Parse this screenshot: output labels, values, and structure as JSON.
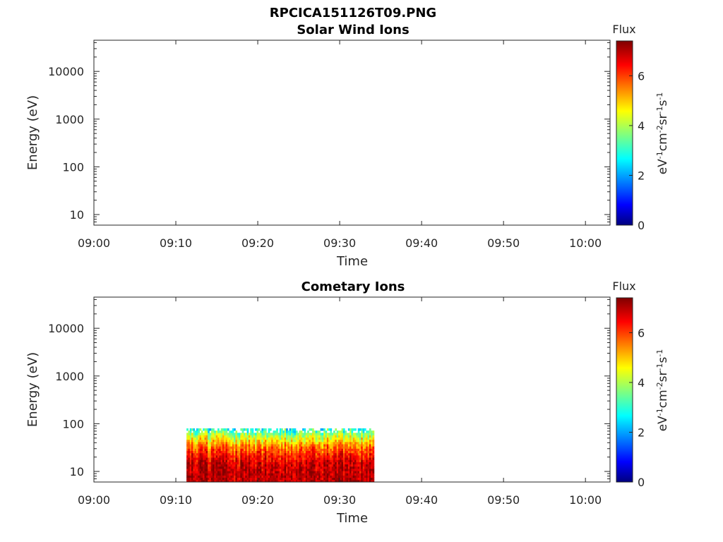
{
  "figure_title": "RPCICA151126T09.PNG",
  "chart_data": [
    {
      "type": "heatmap",
      "title": "Solar Wind Ions",
      "xlabel": "Time",
      "ylabel": "Energy (eV)",
      "x_ticks": [
        "09:00",
        "09:10",
        "09:20",
        "09:30",
        "09:40",
        "09:50",
        "10:00"
      ],
      "x_range_minutes": [
        0,
        63
      ],
      "y_scale": "log",
      "y_ticks": [
        10,
        100,
        1000,
        10000
      ],
      "y_tick_labels": [
        "10",
        "100",
        "1000",
        "10000"
      ],
      "y_range": [
        6,
        45000
      ],
      "data_present": false,
      "colorbar": {
        "title": "Flux",
        "label": "eV-1cm-2sr-1s-1",
        "range": [
          0,
          7.4
        ],
        "ticks": [
          0,
          2,
          4,
          6
        ],
        "colormap": "jet"
      }
    },
    {
      "type": "heatmap",
      "title": "Cometary Ions",
      "xlabel": "Time",
      "ylabel": "Energy (eV)",
      "x_ticks": [
        "09:00",
        "09:10",
        "09:20",
        "09:30",
        "09:40",
        "09:50",
        "10:00"
      ],
      "x_range_minutes": [
        0,
        63
      ],
      "y_scale": "log",
      "y_ticks": [
        10,
        100,
        1000,
        10000
      ],
      "y_tick_labels": [
        "10",
        "100",
        "1000",
        "10000"
      ],
      "y_range": [
        6,
        45000
      ],
      "data_present": true,
      "data_time_range_minutes": [
        11.3,
        34.2
      ],
      "data_energy_range_eV": [
        6,
        80
      ],
      "flux_profile": [
        {
          "energy_eV": 80,
          "flux": 2.8
        },
        {
          "energy_eV": 50,
          "flux": 4.5
        },
        {
          "energy_eV": 30,
          "flux": 5.8
        },
        {
          "energy_eV": 15,
          "flux": 6.8
        },
        {
          "energy_eV": 6,
          "flux": 7.0
        }
      ],
      "colorbar": {
        "title": "Flux",
        "label": "eV-1cm-2sr-1s-1",
        "range": [
          0,
          7.4
        ],
        "ticks": [
          0,
          2,
          4,
          6
        ],
        "colormap": "jet"
      }
    }
  ]
}
